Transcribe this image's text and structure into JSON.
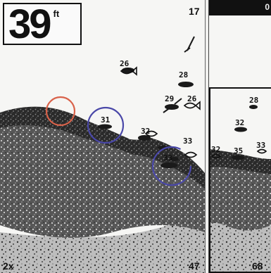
{
  "depth": {
    "value": "39",
    "unit": "ft"
  },
  "scale": {
    "top_right": "17",
    "bottom_left": "2x",
    "bottom_right": "47",
    "zoom_bottom": "68"
  },
  "zoom_panel": {
    "top_label": "0"
  },
  "fish_main": [
    {
      "label": "26"
    },
    {
      "label": "28"
    },
    {
      "label": "29"
    },
    {
      "label": "26"
    },
    {
      "label": "31"
    },
    {
      "label": "32"
    },
    {
      "label": "33"
    },
    {
      "label": "33"
    }
  ],
  "fish_zoom": [
    {
      "label": "28"
    },
    {
      "label": "32"
    },
    {
      "label": "32"
    },
    {
      "label": "35"
    },
    {
      "label": "33"
    }
  ],
  "colors": {
    "highlight_red": "#d9624a",
    "highlight_blue": "#4a48a8",
    "sonar_dark": "#1a1a1a"
  }
}
